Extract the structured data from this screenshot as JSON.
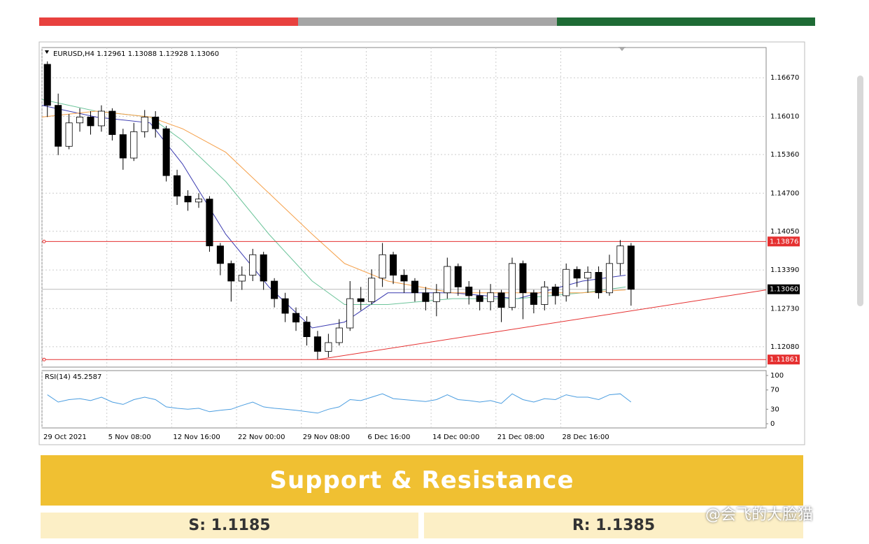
{
  "chart_data": {
    "type": "candlestick",
    "title": "EURUSD,H4 1.12961 1.13088 1.12928 1.13060",
    "xlim": [
      0,
      67
    ],
    "xticks": [
      {
        "value": 0,
        "label": "29 Oct 2021"
      },
      {
        "value": 6,
        "label": "5 Nov 08:00"
      },
      {
        "value": 12,
        "label": "12 Nov 16:00"
      },
      {
        "value": 18,
        "label": "22 Nov 00:00"
      },
      {
        "value": 24,
        "label": "29 Nov 08:00"
      },
      {
        "value": 30,
        "label": "6 Dec 16:00"
      },
      {
        "value": 36,
        "label": "14 Dec 00:00"
      },
      {
        "value": 42,
        "label": "21 Dec 08:00"
      },
      {
        "value": 48,
        "label": "28 Dec 16:00"
      }
    ],
    "ylim": [
      1.11732,
      1.17186
    ],
    "yticks": [
      {
        "value": 1.1208,
        "label": "1.12080"
      },
      {
        "value": 1.1273,
        "label": "1.12730"
      },
      {
        "value": 1.1339,
        "label": "1.13390"
      },
      {
        "value": 1.1405,
        "label": "1.14050"
      },
      {
        "value": 1.147,
        "label": "1.14700"
      },
      {
        "value": 1.1536,
        "label": "1.15360"
      },
      {
        "value": 1.1601,
        "label": "1.16010"
      },
      {
        "value": 1.1667,
        "label": "1.16670"
      }
    ],
    "grid": true,
    "up_color": "#ffffff",
    "down_color": "#000000",
    "ohlc": [
      [
        1.169,
        1.1695,
        1.16,
        1.162
      ],
      [
        1.162,
        1.164,
        1.1535,
        1.155
      ],
      [
        1.155,
        1.1605,
        1.1545,
        1.159
      ],
      [
        1.159,
        1.1615,
        1.1575,
        1.16
      ],
      [
        1.16,
        1.161,
        1.157,
        1.1585
      ],
      [
        1.1585,
        1.162,
        1.1575,
        1.161
      ],
      [
        1.161,
        1.1615,
        1.156,
        1.157
      ],
      [
        1.157,
        1.158,
        1.151,
        1.153
      ],
      [
        1.153,
        1.159,
        1.1525,
        1.1575
      ],
      [
        1.1575,
        1.1612,
        1.1565,
        1.16
      ],
      [
        1.16,
        1.161,
        1.1565,
        1.158
      ],
      [
        1.158,
        1.1585,
        1.149,
        1.15
      ],
      [
        1.15,
        1.151,
        1.145,
        1.1465
      ],
      [
        1.1465,
        1.1475,
        1.144,
        1.1455
      ],
      [
        1.1455,
        1.147,
        1.1445,
        1.146
      ],
      [
        1.146,
        1.1465,
        1.137,
        1.138
      ],
      [
        1.138,
        1.1385,
        1.133,
        1.135
      ],
      [
        1.135,
        1.1355,
        1.1285,
        1.132
      ],
      [
        1.132,
        1.1345,
        1.1305,
        1.133
      ],
      [
        1.133,
        1.1375,
        1.132,
        1.1365
      ],
      [
        1.1365,
        1.137,
        1.1305,
        1.132
      ],
      [
        1.132,
        1.1325,
        1.1275,
        1.129
      ],
      [
        1.129,
        1.13,
        1.125,
        1.1265
      ],
      [
        1.1265,
        1.1275,
        1.1235,
        1.125
      ],
      [
        1.125,
        1.126,
        1.121,
        1.1225
      ],
      [
        1.1225,
        1.1235,
        1.1186,
        1.12
      ],
      [
        1.12,
        1.123,
        1.119,
        1.1215
      ],
      [
        1.1215,
        1.1255,
        1.121,
        1.124
      ],
      [
        1.124,
        1.132,
        1.1235,
        1.129
      ],
      [
        1.129,
        1.131,
        1.127,
        1.1285
      ],
      [
        1.1285,
        1.134,
        1.128,
        1.1325
      ],
      [
        1.1325,
        1.1385,
        1.131,
        1.1365
      ],
      [
        1.1365,
        1.137,
        1.1315,
        1.133
      ],
      [
        1.133,
        1.134,
        1.13,
        1.132
      ],
      [
        1.132,
        1.1325,
        1.1285,
        1.13
      ],
      [
        1.13,
        1.131,
        1.127,
        1.1285
      ],
      [
        1.1285,
        1.1315,
        1.126,
        1.13
      ],
      [
        1.13,
        1.136,
        1.129,
        1.1345
      ],
      [
        1.1345,
        1.135,
        1.1295,
        1.131
      ],
      [
        1.131,
        1.132,
        1.128,
        1.1295
      ],
      [
        1.1295,
        1.1305,
        1.127,
        1.1285
      ],
      [
        1.1285,
        1.1315,
        1.127,
        1.13
      ],
      [
        1.13,
        1.1305,
        1.125,
        1.1275
      ],
      [
        1.1275,
        1.136,
        1.127,
        1.135
      ],
      [
        1.135,
        1.1355,
        1.1255,
        1.13
      ],
      [
        1.13,
        1.1305,
        1.1265,
        1.128
      ],
      [
        1.128,
        1.132,
        1.127,
        1.131
      ],
      [
        1.131,
        1.1315,
        1.128,
        1.1295
      ],
      [
        1.1295,
        1.135,
        1.1285,
        1.134
      ],
      [
        1.134,
        1.1345,
        1.131,
        1.1325
      ],
      [
        1.1325,
        1.1345,
        1.13,
        1.1335
      ],
      [
        1.1335,
        1.1345,
        1.129,
        1.13
      ],
      [
        1.13,
        1.1365,
        1.1295,
        1.135
      ],
      [
        1.135,
        1.139,
        1.133,
        1.138
      ],
      [
        1.138,
        1.1385,
        1.1278,
        1.1306
      ]
    ],
    "mas": [
      {
        "color": "#3a3ab0",
        "x": [
          0,
          5,
          10,
          13,
          17,
          21,
          25,
          28,
          32,
          38,
          44,
          50,
          54
        ],
        "values": [
          1.162,
          1.16,
          1.159,
          1.152,
          1.14,
          1.131,
          1.124,
          1.125,
          1.13,
          1.13,
          1.129,
          1.132,
          1.133
        ]
      },
      {
        "color": "#6cc49a",
        "x": [
          0,
          5,
          10,
          13,
          17,
          21,
          25,
          28,
          32,
          38,
          44,
          50,
          54
        ],
        "values": [
          1.163,
          1.161,
          1.16,
          1.156,
          1.149,
          1.14,
          1.132,
          1.128,
          1.128,
          1.129,
          1.129,
          1.13,
          1.131
        ]
      },
      {
        "color": "#f5a04a",
        "x": [
          0,
          5,
          10,
          13,
          17,
          21,
          25,
          28,
          32,
          38,
          44,
          50,
          54
        ],
        "values": [
          1.16,
          1.161,
          1.16,
          1.158,
          1.154,
          1.147,
          1.14,
          1.135,
          1.132,
          1.13,
          1.13,
          1.13,
          1.1305
        ]
      }
    ],
    "levels": [
      1.13876,
      1.11861
    ],
    "level_color": "#e53030",
    "current_price": {
      "value": 1.1306,
      "label": "1.13060"
    },
    "trendline": {
      "x": [
        25.5,
        67
      ],
      "values": [
        1.1186,
        1.1305
      ]
    },
    "rsi": {
      "label": "RSI(14) 45.2587",
      "color": "#4a9de0",
      "ylim": [
        0,
        100
      ],
      "yticks": [
        0,
        30,
        70,
        100
      ],
      "values": [
        60,
        45,
        50,
        52,
        48,
        55,
        45,
        40,
        50,
        55,
        50,
        35,
        32,
        30,
        32,
        25,
        28,
        30,
        38,
        45,
        35,
        32,
        30,
        28,
        25,
        22,
        30,
        35,
        50,
        48,
        55,
        62,
        52,
        50,
        48,
        46,
        50,
        60,
        50,
        48,
        45,
        48,
        42,
        62,
        50,
        45,
        52,
        50,
        60,
        55,
        55,
        50,
        60,
        62,
        45
      ]
    },
    "banner": {
      "title": "Support & Resistance",
      "support": "S: 1.1185",
      "resistance": "R: 1.1385"
    },
    "watermark": "@会飞的大脸猫"
  }
}
